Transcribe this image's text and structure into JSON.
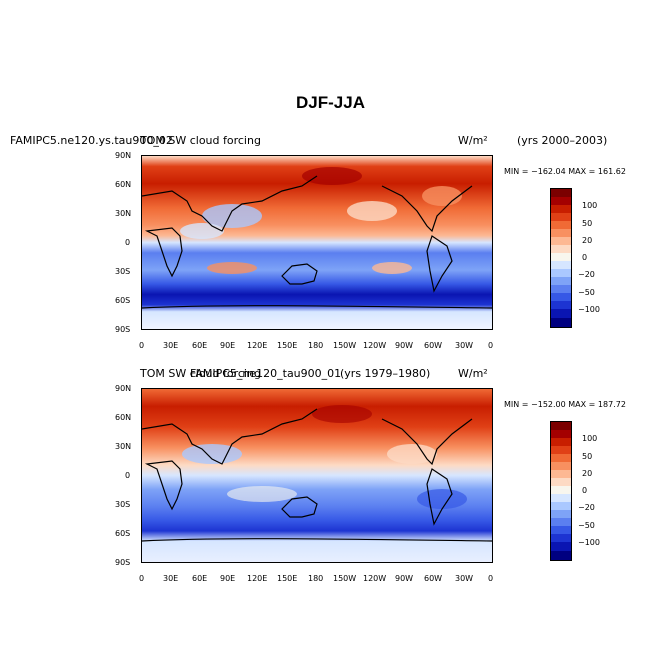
{
  "title": "DJF-JJA",
  "panels": [
    {
      "left_title": "FAMIPC5.ne120.ys.tau900_02",
      "center_title": "TOM SW cloud forcing",
      "units": "W/m²",
      "years": "(yrs 2000–2003)",
      "min_max": "MIN = −162.04  MAX = 161.62",
      "colorbar_labels": [
        "100",
        "50",
        "20",
        "0",
        "−20",
        "−50",
        "−100"
      ]
    },
    {
      "left_title": "FAMIPC5_ne120_tau900_01",
      "center_title": "TOM SW cloud forcing",
      "units": "W/m²",
      "years": "(yrs 1979–1980)",
      "min_max": "MIN = −152.00  MAX = 187.72",
      "colorbar_labels": [
        "100",
        "50",
        "20",
        "0",
        "−20",
        "−50",
        "−100"
      ]
    }
  ],
  "lat_ticks": [
    "90N",
    "60N",
    "30N",
    "0",
    "30S",
    "60S",
    "90S"
  ],
  "lon_ticks": [
    "0",
    "30E",
    "60E",
    "90E",
    "120E",
    "150E",
    "180",
    "150W",
    "120W",
    "90W",
    "60W",
    "30W",
    "0"
  ],
  "colors": {
    "levels": [
      "#7b0000",
      "#a40000",
      "#c81e00",
      "#e04016",
      "#f06a35",
      "#f89060",
      "#fdb893",
      "#fddac4",
      "#f8f6ee",
      "#d6e6ff",
      "#aac8ff",
      "#7ea3f7",
      "#5b7ff0",
      "#3658e6",
      "#1d34d2",
      "#0a15b2",
      "#000080"
    ]
  }
}
